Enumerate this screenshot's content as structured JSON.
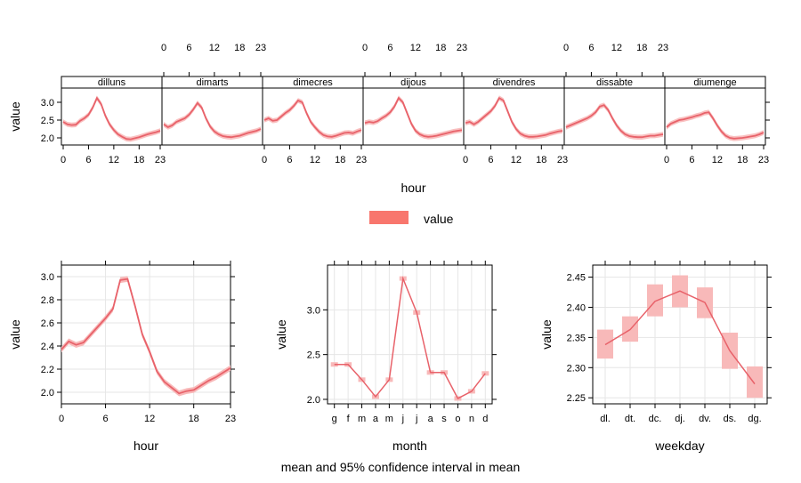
{
  "caption": "mean and 95% confidence interval in mean",
  "legend": {
    "label": "value",
    "color": "#F8766D"
  },
  "colors": {
    "line": "#E8626A",
    "band": "#F8B9B9",
    "strip_bg": "#FFFFFF",
    "grid": "#E6E6E6"
  },
  "chart_data": [
    {
      "type": "line",
      "title": "",
      "xlabel": "hour",
      "ylabel": "value",
      "panels": [
        "dilluns",
        "dimarts",
        "dimecres",
        "dijous",
        "divendres",
        "dissabte",
        "diumenge"
      ],
      "x": [
        0,
        1,
        2,
        3,
        4,
        5,
        6,
        7,
        8,
        9,
        10,
        11,
        12,
        13,
        14,
        15,
        16,
        17,
        18,
        19,
        20,
        21,
        22,
        23
      ],
      "xticks": [
        0,
        6,
        12,
        18,
        23
      ],
      "yticks": [
        2.0,
        2.5,
        3.0
      ],
      "ylim": [
        1.8,
        3.4
      ],
      "series": [
        {
          "name": "dilluns",
          "values": [
            2.45,
            2.38,
            2.36,
            2.37,
            2.48,
            2.55,
            2.65,
            2.85,
            3.12,
            2.95,
            2.62,
            2.38,
            2.22,
            2.1,
            2.03,
            1.97,
            1.96,
            1.99,
            2.02,
            2.06,
            2.1,
            2.13,
            2.16,
            2.2
          ]
        },
        {
          "name": "dimarts",
          "values": [
            2.38,
            2.3,
            2.35,
            2.45,
            2.5,
            2.55,
            2.65,
            2.8,
            2.98,
            2.85,
            2.55,
            2.32,
            2.18,
            2.1,
            2.05,
            2.03,
            2.02,
            2.04,
            2.06,
            2.1,
            2.14,
            2.17,
            2.2,
            2.25
          ]
        },
        {
          "name": "dimecres",
          "values": [
            2.5,
            2.55,
            2.48,
            2.5,
            2.6,
            2.7,
            2.78,
            2.9,
            3.05,
            3.0,
            2.7,
            2.45,
            2.3,
            2.17,
            2.08,
            2.04,
            2.03,
            2.06,
            2.1,
            2.14,
            2.15,
            2.13,
            2.18,
            2.22
          ]
        },
        {
          "name": "dijous",
          "values": [
            2.42,
            2.45,
            2.43,
            2.47,
            2.55,
            2.62,
            2.72,
            2.88,
            3.12,
            3.0,
            2.7,
            2.4,
            2.2,
            2.1,
            2.05,
            2.03,
            2.04,
            2.06,
            2.09,
            2.12,
            2.15,
            2.18,
            2.2,
            2.22
          ]
        },
        {
          "name": "divendres",
          "values": [
            2.42,
            2.45,
            2.38,
            2.45,
            2.55,
            2.65,
            2.75,
            2.9,
            3.12,
            3.05,
            2.75,
            2.45,
            2.25,
            2.12,
            2.06,
            2.03,
            2.03,
            2.04,
            2.06,
            2.08,
            2.12,
            2.15,
            2.18,
            2.2
          ]
        },
        {
          "name": "dissabte",
          "values": [
            2.3,
            2.35,
            2.4,
            2.45,
            2.5,
            2.55,
            2.62,
            2.72,
            2.88,
            2.92,
            2.78,
            2.55,
            2.35,
            2.2,
            2.1,
            2.05,
            2.03,
            2.02,
            2.02,
            2.04,
            2.06,
            2.06,
            2.08,
            2.1
          ]
        },
        {
          "name": "diumenge",
          "values": [
            2.3,
            2.4,
            2.45,
            2.5,
            2.52,
            2.55,
            2.58,
            2.62,
            2.65,
            2.7,
            2.72,
            2.55,
            2.35,
            2.18,
            2.06,
            2.0,
            1.98,
            1.99,
            2.0,
            2.02,
            2.04,
            2.06,
            2.1,
            2.15
          ]
        }
      ]
    },
    {
      "type": "line",
      "title": "",
      "xlabel": "hour",
      "ylabel": "value",
      "x": [
        0,
        1,
        2,
        3,
        4,
        5,
        6,
        7,
        8,
        9,
        10,
        11,
        12,
        13,
        14,
        15,
        16,
        17,
        18,
        19,
        20,
        21,
        22,
        23
      ],
      "values": [
        2.37,
        2.44,
        2.41,
        2.43,
        2.5,
        2.57,
        2.64,
        2.72,
        2.97,
        2.98,
        2.75,
        2.5,
        2.35,
        2.18,
        2.09,
        2.04,
        1.99,
        2.01,
        2.02,
        2.06,
        2.1,
        2.13,
        2.17,
        2.21
      ],
      "xticks": [
        0,
        6,
        12,
        18,
        23
      ],
      "yticks": [
        2.0,
        2.2,
        2.4,
        2.6,
        2.8,
        3.0
      ],
      "ylim": [
        1.9,
        3.1
      ]
    },
    {
      "type": "line",
      "title": "",
      "xlabel": "month",
      "ylabel": "value",
      "categories": [
        "g",
        "f",
        "m",
        "a",
        "m",
        "j",
        "j",
        "a",
        "s",
        "o",
        "n",
        "d"
      ],
      "values": [
        2.39,
        2.39,
        2.22,
        2.03,
        2.22,
        3.35,
        2.97,
        2.3,
        2.3,
        2.01,
        2.09,
        2.29
      ],
      "yticks": [
        2.0,
        2.5,
        3.0
      ],
      "ylim": [
        1.95,
        3.5
      ]
    },
    {
      "type": "line",
      "title": "",
      "xlabel": "weekday",
      "ylabel": "value",
      "categories": [
        "dl.",
        "dt.",
        "dc.",
        "dj.",
        "dv.",
        "ds.",
        "dg."
      ],
      "values": [
        2.338,
        2.363,
        2.41,
        2.427,
        2.408,
        2.328,
        2.273
      ],
      "ci_low": [
        2.315,
        2.343,
        2.385,
        2.4,
        2.382,
        2.298,
        2.25
      ],
      "ci_high": [
        2.363,
        2.385,
        2.438,
        2.453,
        2.433,
        2.358,
        2.302
      ],
      "yticks": [
        2.25,
        2.3,
        2.35,
        2.4,
        2.45
      ],
      "ylim": [
        2.24,
        2.47
      ]
    }
  ]
}
